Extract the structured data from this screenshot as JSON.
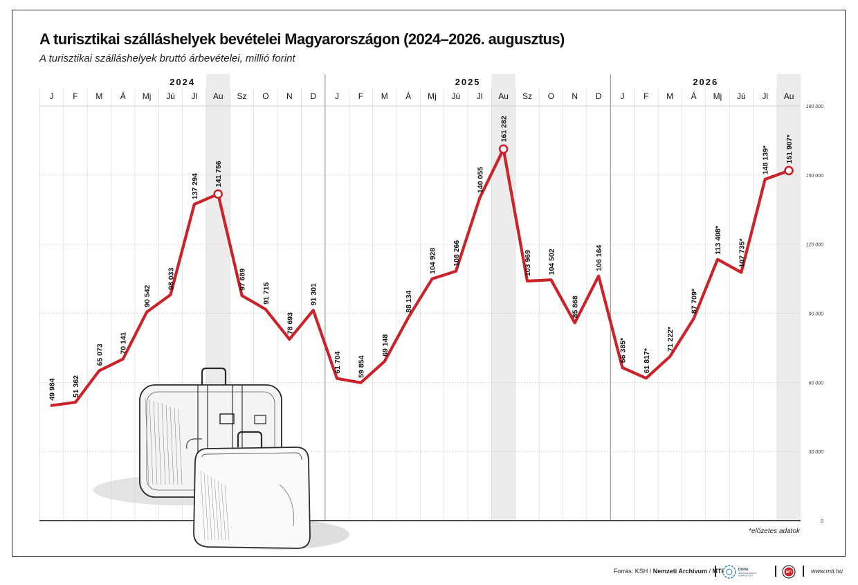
{
  "header": {
    "title": "A turisztikai szálláshelyek bevételei Magyarországon (2024–2026. augusztus)",
    "subtitle": "A turisztikai szálláshelyek bruttó árbevételei, millió forint"
  },
  "note": "*előzetes adatok",
  "footer": {
    "source_prefix": "Forrás: KSH / ",
    "source_archive": "Nemzeti Archívum",
    "source_sep": " / ",
    "source_mti": "MTI",
    "duna_logo_text": "DUNA MÉDIASZOLGÁLTATÓ NONPROFIT ZRT.",
    "mti_logo_text": "MTI",
    "website": "www.mti.hu"
  },
  "colors": {
    "line": "#cc2229",
    "highlight_band": "#ececec",
    "grid": "#d4d4d4",
    "text": "#111111"
  },
  "decoration": {
    "illustration": "suitcases-sketch"
  },
  "chart_data": {
    "type": "line",
    "title": "A turisztikai szálláshelyek bevételei Magyarországon (2024–2026. augusztus)",
    "subtitle": "A turisztikai szálláshelyek bruttó árbevételei, millió forint",
    "years": [
      {
        "label": "2024",
        "months": 12
      },
      {
        "label": "2025",
        "months": 12
      },
      {
        "label": "2026",
        "months": 8
      }
    ],
    "categories": [
      "J",
      "F",
      "M",
      "Á",
      "Mj",
      "Jú",
      "Jl",
      "Au",
      "Sz",
      "O",
      "N",
      "D",
      "J",
      "F",
      "M",
      "Á",
      "Mj",
      "Jú",
      "Jl",
      "Au",
      "Sz",
      "O",
      "N",
      "D",
      "J",
      "F",
      "M",
      "Á",
      "Mj",
      "Jú",
      "Jl",
      "Au"
    ],
    "values": [
      49984,
      51362,
      65073,
      70141,
      90542,
      98033,
      137294,
      141756,
      97689,
      91715,
      78693,
      91301,
      61704,
      59854,
      69148,
      88134,
      104928,
      108266,
      140055,
      161282,
      103969,
      104502,
      85868,
      106164,
      66385,
      61817,
      71222,
      87709,
      113408,
      107735,
      148139,
      151907
    ],
    "value_labels": [
      "49 984",
      "51 362",
      "65 073",
      "70 141",
      "90 542",
      "98 033",
      "137 294",
      "141 756",
      "97 689",
      "91 715",
      "78 693",
      "91 301",
      "61 704",
      "59 854",
      "69 148",
      "88 134",
      "104 928",
      "108 266",
      "140 055",
      "161 282",
      "103 969",
      "104 502",
      "85 868",
      "106 164",
      "66 385*",
      "61 817*",
      "71 222*",
      "87 709*",
      "113 408*",
      "107 735*",
      "148 139*",
      "151 907*"
    ],
    "highlighted": [
      7,
      19,
      31
    ],
    "ylim": [
      0,
      180000
    ],
    "yticks": [
      0,
      30000,
      60000,
      90000,
      120000,
      150000,
      180000
    ],
    "ytick_labels": [
      "0",
      "30 000",
      "60 000",
      "90 000",
      "120 000",
      "150 000",
      "180 000"
    ],
    "y_axis_position": "right",
    "grid": true,
    "legend": "none"
  }
}
